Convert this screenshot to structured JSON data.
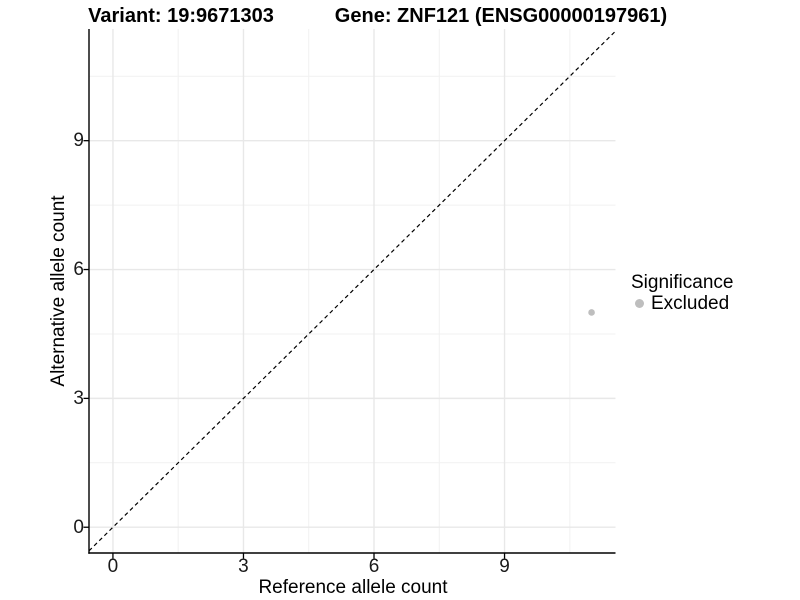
{
  "header": {
    "variant_title": "Variant: 19:9671303",
    "gene_title": "Gene: ZNF121 (ENSG00000197961)"
  },
  "legend": {
    "title": "Significance",
    "items": [
      {
        "label": "Excluded",
        "color": "#bebebe"
      }
    ]
  },
  "colors": {
    "background": "#ffffff",
    "grid_major": "#e8e8e8",
    "grid_minor": "#f1f1f1",
    "axis": "#000000",
    "tick_text": "#1a1a1a",
    "point_excluded": "#bebebe",
    "reference_line": "#000000"
  },
  "chart_data": {
    "type": "scatter",
    "title": "Variant: 19:9671303 | Gene: ZNF121 (ENSG00000197961)",
    "xlabel": "Reference allele count",
    "ylabel": "Alternative allele count",
    "xlim": [
      -0.55,
      11.55
    ],
    "ylim": [
      -0.6,
      11.6
    ],
    "x_ticks": [
      0,
      3,
      6,
      9
    ],
    "y_ticks": [
      0,
      3,
      6,
      9
    ],
    "x_minor_ticks": [
      1.5,
      4.5,
      7.5,
      10.5
    ],
    "y_minor_ticks": [
      1.5,
      4.5,
      7.5,
      10.5
    ],
    "grid": true,
    "legend_title": "Significance",
    "legend_position": "right",
    "series": [
      {
        "name": "Excluded",
        "color": "#bebebe",
        "points": [
          {
            "x": 11,
            "y": 5
          }
        ]
      }
    ],
    "reference_line": {
      "type": "identity-diagonal",
      "equation": "y = x",
      "style": "dashed",
      "color": "#000000"
    }
  }
}
